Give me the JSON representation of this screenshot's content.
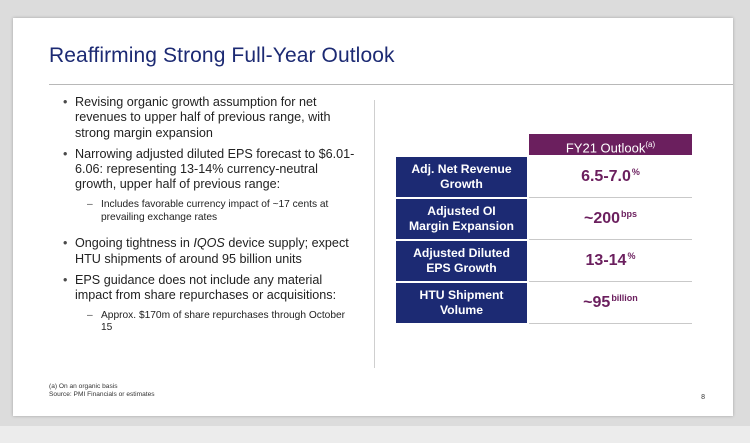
{
  "title": "Reaffirming Strong Full-Year Outlook",
  "bullets": [
    {
      "text": "Revising organic growth assumption for net revenues to upper half of previous range, with strong margin expansion"
    },
    {
      "text": "Narrowing adjusted diluted EPS forecast to $6.01-6.06: representing 13-14% currency-neutral growth, upper half of previous range:",
      "sub": "Includes favorable currency impact of ~17 cents at prevailing exchange rates"
    },
    {
      "text_pre": "Ongoing tightness in ",
      "text_italic": "IQOS",
      "text_post": " device supply; expect HTU shipments of around 95 billion units"
    },
    {
      "text": "EPS guidance does not include any material impact from share repurchases or acquisitions:",
      "sub": "Approx. $170m of share repurchases through October 15"
    }
  ],
  "table": {
    "header": "FY21 Outlook",
    "header_sup": "(a)",
    "rows": [
      {
        "label_line1": "Adj. Net Revenue",
        "label_line2": "Growth",
        "value": "6.5-7.0",
        "value_sup": "%"
      },
      {
        "label_line1": "Adjusted OI",
        "label_line2": "Margin Expansion",
        "value": "~200",
        "value_sup": "bps"
      },
      {
        "label_line1": "Adjusted Diluted",
        "label_line2": "EPS Growth",
        "value": "13-14",
        "value_sup": "%"
      },
      {
        "label_line1": "HTU Shipment",
        "label_line2": "Volume",
        "value": "~95",
        "value_sup": "billion"
      }
    ]
  },
  "footnotes": {
    "line1": "(a) On an organic basis",
    "line2": "Source: PMI Financials or estimates"
  },
  "page_number": "8",
  "colors": {
    "navy": "#1c2a73",
    "plum": "#6b1f5e"
  }
}
